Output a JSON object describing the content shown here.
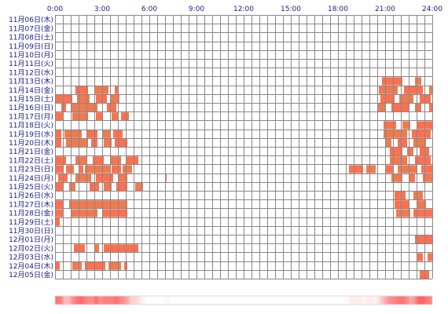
{
  "chart_data": {
    "type": "heatmap",
    "title": "",
    "xlabel": "",
    "ylabel": "",
    "x_unit": "hours",
    "xlim": [
      0,
      24
    ],
    "x_ticks": [
      "0:00",
      "3:00",
      "6:00",
      "9:00",
      "12:00",
      "15:00",
      "18:00",
      "21:00",
      "24:00"
    ],
    "rows": [
      "11月06日(木)",
      "11月07日(金)",
      "11月08日(土)",
      "11月09日(日)",
      "11月10日(月)",
      "11月11日(火)",
      "11月12日(水)",
      "11月13日(木)",
      "11月14日(金)",
      "11月15日(土)",
      "11月16日(日)",
      "11月17日(月)",
      "11月18日(火)",
      "11月19日(水)",
      "11月20日(木)",
      "11月21日(金)",
      "11月22日(土)",
      "11月23日(日)",
      "11月24日(月)",
      "11月25日(火)",
      "11月26日(水)",
      "11月27日(木)",
      "11月28日(金)",
      "11月29日(土)",
      "11月30日(日)",
      "12月01日(月)",
      "12月02日(火)",
      "12月03日(水)",
      "12月04日(木)",
      "12月05日(金)"
    ],
    "grid": true,
    "colors": {
      "primary": "#ff7050",
      "secondary": "#f07a50",
      "grid": "#888888",
      "label": "#1a1a80"
    },
    "activity": [
      [],
      [],
      [],
      [],
      [],
      [],
      [],
      [
        [
          20.8,
          22.1
        ],
        [
          22.9,
          23.3
        ]
      ],
      [
        [
          1.3,
          2.1
        ],
        [
          2.5,
          3.4
        ],
        [
          3.8,
          4.0
        ],
        [
          20.6,
          21.8
        ],
        [
          22.2,
          23.4
        ],
        [
          23.8,
          24.0
        ]
      ],
      [
        [
          0.0,
          1.1
        ],
        [
          1.4,
          2.2
        ],
        [
          2.6,
          3.3
        ],
        [
          3.5,
          4.1
        ],
        [
          20.7,
          21.6
        ],
        [
          21.9,
          22.8
        ],
        [
          23.2,
          23.9
        ]
      ],
      [
        [
          0.4,
          0.7
        ],
        [
          1.0,
          2.7
        ],
        [
          3.3,
          3.9
        ],
        [
          20.5,
          21.0
        ],
        [
          21.4,
          22.5
        ],
        [
          22.9,
          23.3
        ],
        [
          23.8,
          24.0
        ]
      ],
      [
        [
          0.0,
          0.5
        ],
        [
          1.1,
          2.1
        ],
        [
          2.6,
          3.0
        ],
        [
          3.6,
          4.0
        ],
        [
          4.2,
          4.7
        ]
      ],
      [
        [
          20.9,
          21.7
        ],
        [
          22.1,
          22.6
        ],
        [
          23.0,
          24.0
        ]
      ],
      [
        [
          0.0,
          0.4
        ],
        [
          0.6,
          1.7
        ],
        [
          2.0,
          2.7
        ],
        [
          3.0,
          3.5
        ],
        [
          3.7,
          4.3
        ],
        [
          20.9,
          22.4
        ],
        [
          22.7,
          23.9
        ]
      ],
      [
        [
          0.0,
          0.4
        ],
        [
          0.7,
          2.1
        ],
        [
          2.3,
          2.7
        ],
        [
          3.1,
          3.6
        ],
        [
          3.8,
          4.6
        ],
        [
          21.0,
          21.4
        ],
        [
          21.8,
          22.4
        ],
        [
          22.8,
          23.6
        ]
      ],
      [
        [
          21.3,
          22.1
        ],
        [
          22.4,
          22.8
        ],
        [
          23.2,
          23.8
        ]
      ],
      [
        [
          0.0,
          0.7
        ],
        [
          1.3,
          2.0
        ],
        [
          2.4,
          3.1
        ],
        [
          3.5,
          4.2
        ],
        [
          4.5,
          5.3
        ],
        [
          21.3,
          22.4
        ],
        [
          22.9,
          23.9
        ]
      ],
      [
        [
          0.0,
          0.5
        ],
        [
          0.7,
          1.2
        ],
        [
          1.5,
          1.8
        ],
        [
          1.9,
          3.5
        ],
        [
          3.6,
          4.2
        ],
        [
          4.3,
          4.9
        ],
        [
          18.7,
          19.6
        ],
        [
          19.8,
          20.4
        ],
        [
          21.0,
          21.5
        ],
        [
          21.8,
          23.0
        ],
        [
          23.3,
          24.0
        ]
      ],
      [
        [
          0.2,
          0.8
        ],
        [
          1.3,
          2.3
        ],
        [
          2.6,
          3.7
        ],
        [
          4.0,
          4.6
        ],
        [
          7.0,
          7.1
        ],
        [
          21.4,
          22.1
        ],
        [
          22.5,
          22.9
        ],
        [
          23.4,
          24.0
        ]
      ],
      [
        [
          0.0,
          0.5
        ],
        [
          0.9,
          1.3
        ],
        [
          2.2,
          2.8
        ],
        [
          3.1,
          3.6
        ],
        [
          3.9,
          4.6
        ],
        [
          5.1,
          5.6
        ]
      ],
      [
        [
          21.6,
          22.3
        ],
        [
          22.8,
          23.4
        ]
      ],
      [
        [
          0.0,
          0.5
        ],
        [
          0.9,
          4.6
        ],
        [
          21.6,
          22.5
        ],
        [
          23.0,
          23.6
        ]
      ],
      [
        [
          0.0,
          0.5
        ],
        [
          1.0,
          2.7
        ],
        [
          3.0,
          4.6
        ],
        [
          21.7,
          22.6
        ],
        [
          22.8,
          24.0
        ]
      ],
      [
        [
          0.0,
          0.3
        ]
      ],
      [],
      [
        [
          22.9,
          24.0
        ]
      ],
      [
        [
          1.2,
          1.9
        ],
        [
          2.5,
          2.8
        ],
        [
          3.1,
          5.3
        ]
      ],
      [
        [
          23.0,
          23.4
        ],
        [
          23.7,
          24.0
        ]
      ],
      [
        [
          0.0,
          0.3
        ],
        [
          1.1,
          1.7
        ],
        [
          1.9,
          3.2
        ],
        [
          3.4,
          4.2
        ],
        [
          4.4,
          4.6
        ]
      ],
      [
        [
          23.2,
          23.8
        ]
      ]
    ],
    "summary_bar": true
  }
}
